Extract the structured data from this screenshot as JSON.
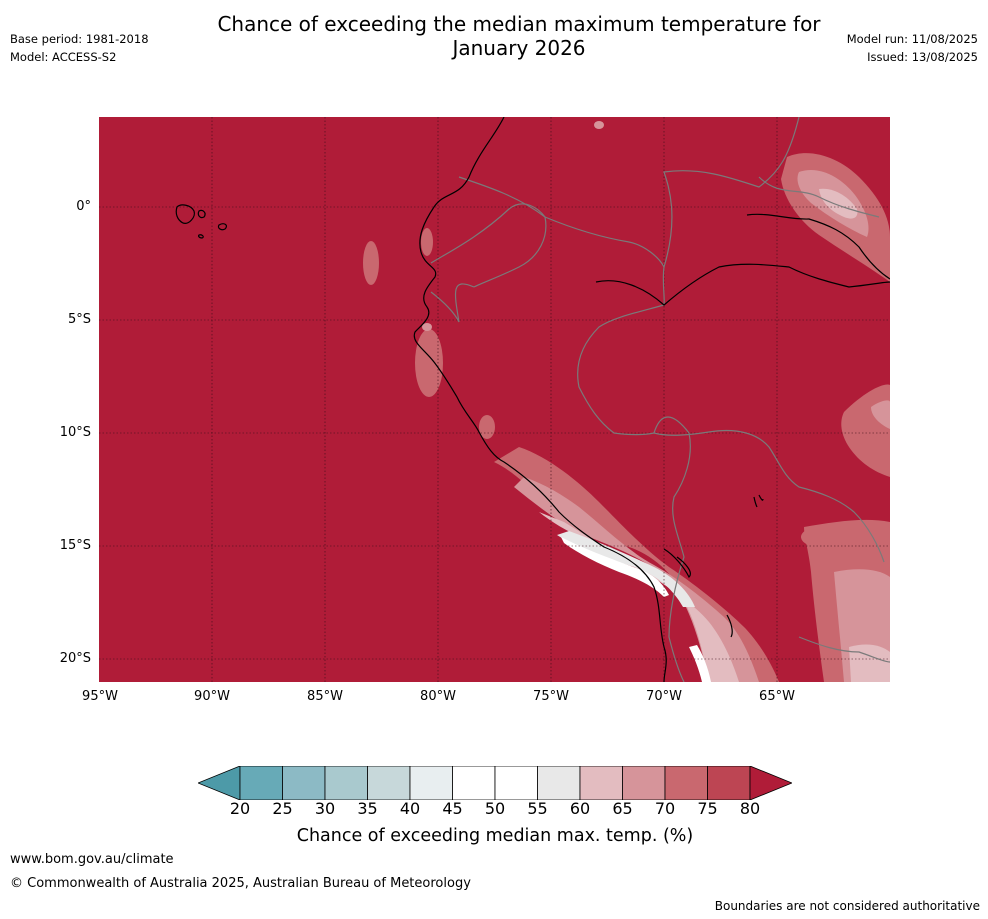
{
  "header": {
    "title_line1": "Chance of exceeding the median maximum temperature for",
    "title_line2": "January 2026",
    "base_period": "Base period: 1981-2018",
    "model": "Model: ACCESS-S2",
    "model_run": "Model run: 11/08/2025",
    "issued": "Issued: 13/08/2025"
  },
  "map": {
    "lat_labels": [
      "0°",
      "5°S",
      "10°S",
      "15°S",
      "20°S"
    ],
    "lon_labels": [
      "95°W",
      "90°W",
      "85°W",
      "80°W",
      "75°W",
      "70°W",
      "65°W"
    ],
    "background_color": "#b01c38"
  },
  "colorbar": {
    "ticks": [
      "20",
      "25",
      "30",
      "35",
      "40",
      "45",
      "50",
      "55",
      "60",
      "65",
      "70",
      "75",
      "80"
    ],
    "colors": [
      "#4d9aa8",
      "#67aab7",
      "#8cbac5",
      "#a9c9ce",
      "#c7d8da",
      "#e8eef0",
      "#ffffff",
      "#ffffff",
      "#e8e8e8",
      "#e3bcc0",
      "#d6949a",
      "#c9686f",
      "#bd4553",
      "#b01c38"
    ],
    "label": "Chance of exceeding median max. temp. (%)"
  },
  "footer": {
    "website": "www.bom.gov.au/climate",
    "copyright": "© Commonwealth of Australia 2025, Australian Bureau of Meteorology",
    "disclaimer": "Boundaries are not considered authoritative"
  }
}
